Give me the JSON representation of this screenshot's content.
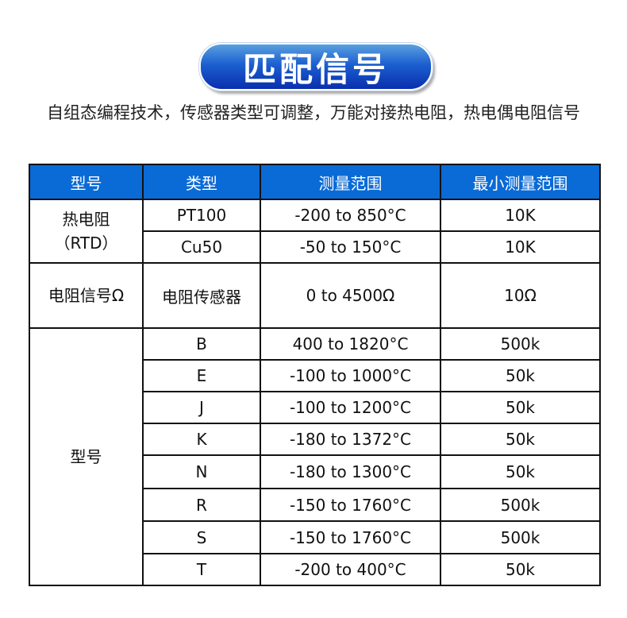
{
  "title": "匹配信号",
  "description": "自组态编程技术，传感器类型可调整，万能对接热电阻，热电偶电阻信号",
  "table": {
    "headers": [
      "型号",
      "类型",
      "测量范围",
      "最小测量范围"
    ],
    "groups": [
      {
        "label": "热电阻\n（RTD）",
        "rows": [
          [
            "PT100",
            "-200 to 850°C",
            "10K"
          ],
          [
            "Cu50",
            "-50 to 150°C",
            "10K"
          ]
        ]
      },
      {
        "label": "电阻信号Ω",
        "rows": [
          [
            "电阻传感器",
            "0 to 4500Ω",
            "10Ω"
          ]
        ]
      },
      {
        "label": "型号",
        "rows": [
          [
            "B",
            "400 to 1820°C",
            "500k"
          ],
          [
            "E",
            "-100 to 1000°C",
            "50k"
          ],
          [
            "J",
            "-100 to 1200°C",
            "50k"
          ],
          [
            "K",
            "-180 to 1372°C",
            "50k"
          ],
          [
            "N",
            "-180 to 1300°C",
            "50k"
          ],
          [
            "R",
            "-150 to 1760°C",
            "500k"
          ],
          [
            "S",
            "-150 to 1760°C",
            "500k"
          ],
          [
            "T",
            "-200 to 400°C",
            "50k"
          ]
        ]
      }
    ]
  },
  "colors": {
    "header_bg": "#0a6ad6",
    "pill_top": "#5aa0e0",
    "pill_bottom": "#0a2fae"
  }
}
